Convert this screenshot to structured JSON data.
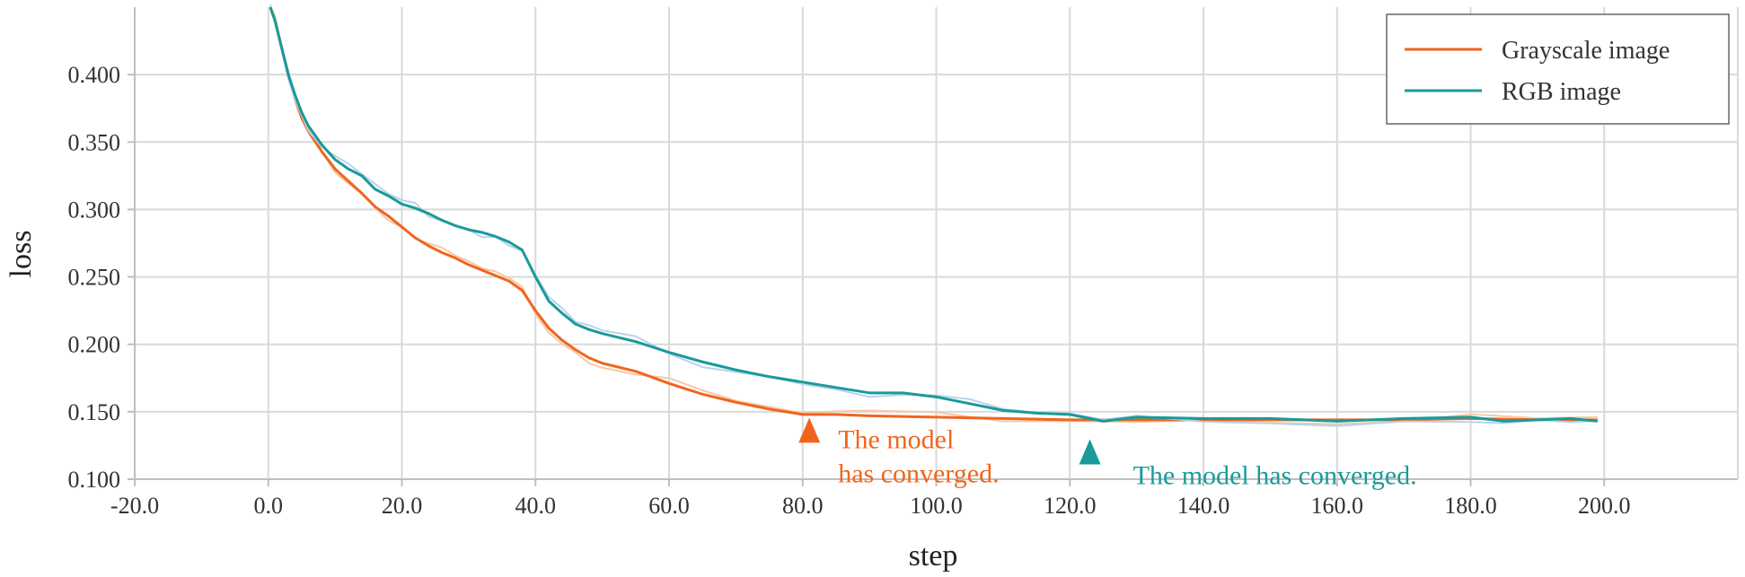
{
  "chart_data": {
    "type": "line",
    "xlabel": "step",
    "ylabel": "loss",
    "xlim": [
      -20,
      220
    ],
    "ylim": [
      0.1,
      0.45
    ],
    "grid": true,
    "x_ticks": [
      -20,
      0,
      20,
      40,
      60,
      80,
      100,
      120,
      140,
      160,
      180,
      200
    ],
    "x_tick_labels": [
      "-20.0",
      "0.0",
      "20.0",
      "40.0",
      "60.0",
      "80.0",
      "100.0",
      "120.0",
      "140.0",
      "160.0",
      "180.0",
      "200.0"
    ],
    "y_ticks": [
      0.1,
      0.15,
      0.2,
      0.25,
      0.3,
      0.35,
      0.4
    ],
    "y_tick_labels": [
      "0.100",
      "0.150",
      "0.200",
      "0.250",
      "0.300",
      "0.350",
      "0.400"
    ],
    "legend_position": "top-right",
    "series": [
      {
        "name": "Grayscale image",
        "color": "#F0651E",
        "x": [
          0.3,
          1,
          2,
          3,
          4,
          5,
          6,
          8,
          10,
          12,
          14,
          16,
          18,
          20,
          22,
          24,
          26,
          28,
          30,
          32,
          34,
          36,
          38,
          40,
          42,
          44,
          46,
          48,
          50,
          55,
          60,
          65,
          70,
          75,
          80,
          85,
          90,
          100,
          110,
          120,
          130,
          140,
          150,
          160,
          170,
          180,
          190,
          199
        ],
        "values": [
          0.45,
          0.44,
          0.42,
          0.4,
          0.382,
          0.368,
          0.358,
          0.343,
          0.33,
          0.321,
          0.312,
          0.302,
          0.295,
          0.287,
          0.279,
          0.273,
          0.268,
          0.264,
          0.259,
          0.255,
          0.251,
          0.247,
          0.24,
          0.225,
          0.212,
          0.203,
          0.196,
          0.19,
          0.186,
          0.18,
          0.171,
          0.163,
          0.157,
          0.152,
          0.148,
          0.148,
          0.147,
          0.146,
          0.145,
          0.144,
          0.144,
          0.144,
          0.144,
          0.144,
          0.144,
          0.145,
          0.144,
          0.144
        ]
      },
      {
        "name": "RGB image",
        "color": "#1A9A9A",
        "x": [
          0.3,
          1,
          2,
          3,
          4,
          5,
          6,
          8,
          10,
          12,
          14,
          16,
          18,
          20,
          22,
          24,
          26,
          28,
          30,
          32,
          34,
          36,
          38,
          40,
          42,
          44,
          46,
          48,
          50,
          55,
          60,
          65,
          70,
          75,
          80,
          85,
          90,
          95,
          100,
          105,
          110,
          115,
          120,
          125,
          130,
          140,
          150,
          160,
          170,
          180,
          185,
          190,
          195,
          199
        ],
        "values": [
          0.45,
          0.44,
          0.42,
          0.4,
          0.385,
          0.372,
          0.362,
          0.348,
          0.337,
          0.33,
          0.325,
          0.315,
          0.31,
          0.304,
          0.301,
          0.297,
          0.292,
          0.288,
          0.285,
          0.283,
          0.28,
          0.276,
          0.27,
          0.25,
          0.232,
          0.223,
          0.215,
          0.211,
          0.208,
          0.202,
          0.194,
          0.187,
          0.181,
          0.176,
          0.172,
          0.168,
          0.164,
          0.164,
          0.161,
          0.156,
          0.151,
          0.149,
          0.148,
          0.143,
          0.146,
          0.145,
          0.145,
          0.143,
          0.145,
          0.146,
          0.143,
          0.144,
          0.145,
          0.143
        ]
      }
    ],
    "annotations": [
      {
        "name": "gray-converged",
        "text_lines": [
          "The model",
          "has converged."
        ],
        "x": 81,
        "y": 0.135,
        "marker": "triangle-up",
        "color": "#F0651E"
      },
      {
        "name": "rgb-converged",
        "text_lines": [
          "The model has converged."
        ],
        "x": 123,
        "y": 0.119,
        "marker": "triangle-up",
        "color": "#1A9A9A"
      }
    ]
  }
}
